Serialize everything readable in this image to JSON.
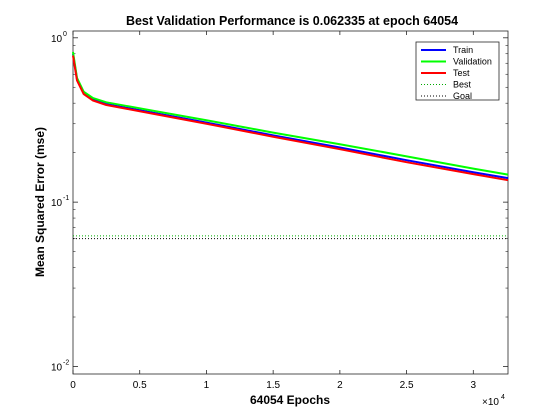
{
  "chart_data": {
    "type": "line",
    "title": "Best Validation Performance is 0.062335 at epoch 64054",
    "xlabel": "64054 Epochs",
    "ylabel": "Mean Squared Error  (mse)",
    "x_exponent_label": "×10",
    "x_exponent_power": "4",
    "xlim": [
      0,
      32600
    ],
    "ylim": [
      0.009,
      1.1
    ],
    "yscale": "log",
    "x_ticks": [
      0,
      5000,
      10000,
      15000,
      20000,
      25000,
      30000
    ],
    "x_tick_labels": [
      "0",
      "0.5",
      "1",
      "1.5",
      "2",
      "2.5",
      "3"
    ],
    "y_ticks": [
      0.01,
      0.1,
      1
    ],
    "y_tick_base": "10",
    "y_tick_exponents": [
      "-2",
      "-1",
      "0"
    ],
    "grid": false,
    "legend_position": "top-right",
    "series": [
      {
        "name": "Train",
        "color": "#0000ff",
        "style": "solid",
        "x": [
          0,
          300,
          800,
          1500,
          2500,
          4000,
          6000,
          10000,
          15000,
          20000,
          25000,
          30000,
          32600
        ],
        "y": [
          0.8,
          0.56,
          0.46,
          0.42,
          0.395,
          0.375,
          0.35,
          0.305,
          0.255,
          0.215,
          0.18,
          0.152,
          0.14
        ]
      },
      {
        "name": "Validation",
        "color": "#00ff00",
        "style": "solid",
        "x": [
          0,
          300,
          800,
          1500,
          2500,
          4000,
          6000,
          10000,
          15000,
          20000,
          25000,
          30000,
          32600
        ],
        "y": [
          0.82,
          0.57,
          0.47,
          0.43,
          0.405,
          0.385,
          0.36,
          0.315,
          0.265,
          0.225,
          0.19,
          0.16,
          0.147
        ]
      },
      {
        "name": "Test",
        "color": "#ff0000",
        "style": "solid",
        "x": [
          0,
          300,
          800,
          1500,
          2500,
          4000,
          6000,
          10000,
          15000,
          20000,
          25000,
          30000,
          32600
        ],
        "y": [
          0.78,
          0.55,
          0.455,
          0.415,
          0.39,
          0.37,
          0.345,
          0.3,
          0.25,
          0.21,
          0.175,
          0.148,
          0.136
        ]
      },
      {
        "name": "Best",
        "color": "#00aa00",
        "style": "dotted",
        "x": [
          0,
          32600
        ],
        "y": [
          0.062335,
          0.062335
        ]
      },
      {
        "name": "Goal",
        "color": "#000000",
        "style": "dotted",
        "x": [
          0,
          32600
        ],
        "y": [
          0.06,
          0.06
        ]
      }
    ]
  }
}
